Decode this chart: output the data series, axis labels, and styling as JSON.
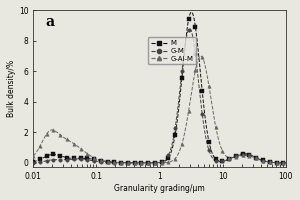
{
  "title": "a",
  "xlabel": "Granularity grading/μm",
  "ylabel": "Bulk density/%",
  "xlim": [
    0.01,
    100
  ],
  "ylim": [
    -0.3,
    10
  ],
  "yticks": [
    0,
    2,
    4,
    6,
    8,
    10
  ],
  "series": {
    "M": {
      "label": "M",
      "marker": "s",
      "color": "#111111",
      "linestyle": "--"
    },
    "G-M": {
      "label": "G-M",
      "marker": "o",
      "color": "#444444",
      "linestyle": "--"
    },
    "G-Al-M": {
      "label": "G-Al-M",
      "marker": "^",
      "color": "#666666",
      "linestyle": "--"
    }
  },
  "background_color": "#e8e8e0",
  "plot_bg": "#e8e8e0",
  "figsize": [
    3.0,
    2.0
  ],
  "dpi": 100
}
